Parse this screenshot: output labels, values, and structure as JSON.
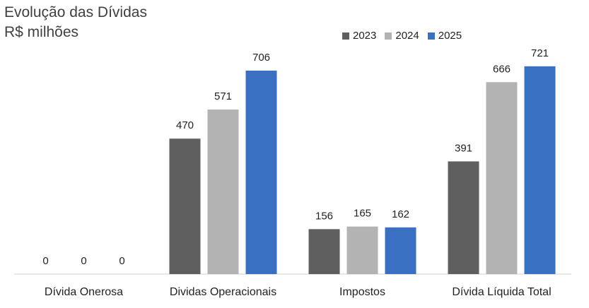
{
  "chart_data": {
    "type": "bar",
    "title": "Evolução das Dívidas",
    "subtitle": "R$ milhões",
    "categories": [
      "Dívida Onerosa",
      "Dividas Operacionais",
      "Impostos",
      "Dívida Líquida Total"
    ],
    "series": [
      {
        "name": "2023",
        "color": "#5f5f5f",
        "values": [
          0,
          470,
          156,
          391
        ],
        "labels": [
          "0",
          "470",
          "156",
          "391"
        ]
      },
      {
        "name": "2024",
        "color": "#b3b3b3",
        "values": [
          0,
          571,
          165,
          666
        ],
        "labels": [
          "0",
          "571",
          "165",
          "666"
        ]
      },
      {
        "name": "2025",
        "color": "#3a70c2",
        "values": [
          0,
          706,
          162,
          721
        ],
        "labels": [
          "0",
          "706",
          "162",
          "721"
        ]
      }
    ],
    "ylim": [
      0,
      750
    ],
    "grid": false,
    "legend_position": "top-right"
  }
}
